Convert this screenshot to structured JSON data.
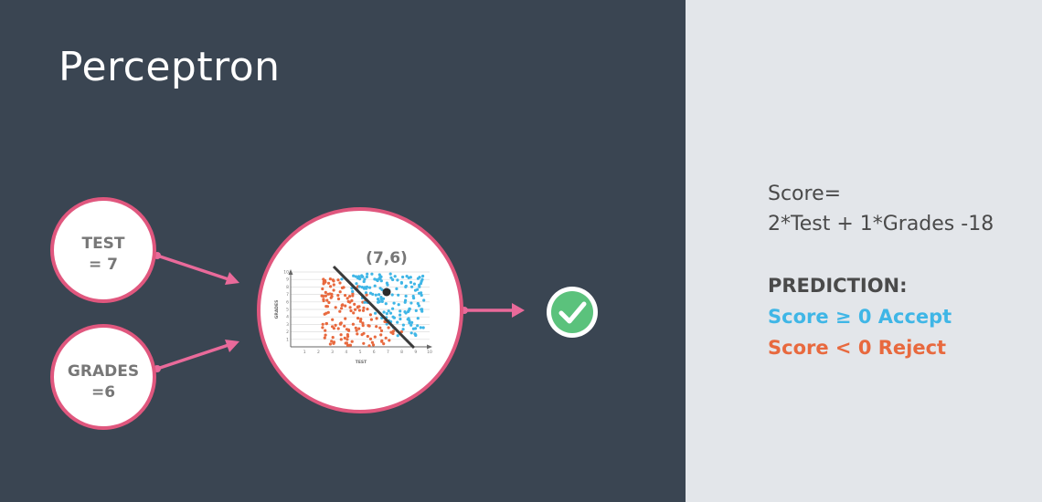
{
  "title": "Perceptron",
  "inputs": {
    "test": {
      "line1": "TEST",
      "line2": "= 7"
    },
    "grades": {
      "line1": "GRADES",
      "line2": "=6"
    }
  },
  "plot": {
    "point_label": "(7,6)",
    "xlabel": "TEST",
    "ylabel": "GRADES",
    "x_ticks": [
      "1",
      "2",
      "3",
      "4",
      "5",
      "6",
      "7",
      "8",
      "9",
      "10"
    ],
    "y_ticks": [
      "1",
      "2",
      "3",
      "4",
      "5",
      "6",
      "7",
      "8",
      "9",
      "10"
    ]
  },
  "score": {
    "line1": "Score=",
    "line2": "2*Test + 1*Grades -18"
  },
  "prediction": {
    "title": "PREDICTION:",
    "accept": "Score ≥ 0 Accept",
    "reject": "Score < 0 Reject"
  },
  "colors": {
    "node_border": "#e0577e",
    "arrow": "#e96a9a",
    "accept": "#3fb6e6",
    "reject": "#e8693e",
    "check": "#5bc27c"
  },
  "icons": {
    "output": "check-circle-icon"
  }
}
